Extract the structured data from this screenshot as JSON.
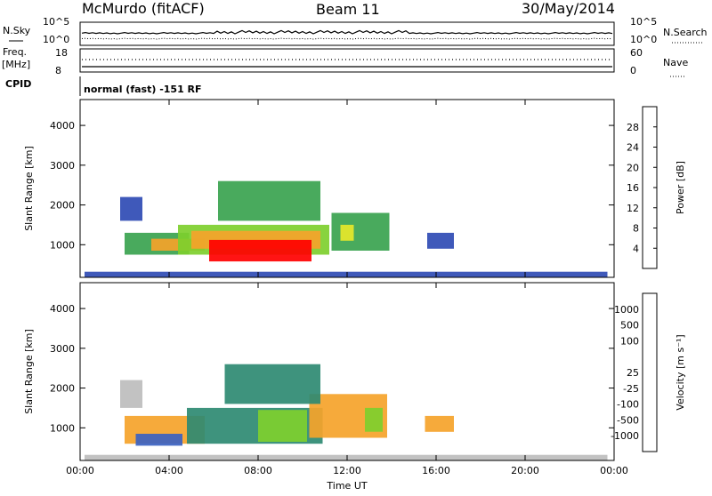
{
  "header": {
    "station": "McMurdo (fitACF)",
    "beam": "Beam 11",
    "date": "30/May/2014"
  },
  "status_panel": {
    "left_labels": {
      "nsky": "N.Sky",
      "freq": "Freq.",
      "freq_unit": "[MHz]",
      "cpid": "CPID"
    },
    "right_labels": {
      "nsearch": "N.Search",
      "nave": "Nave"
    },
    "left_ticks": {
      "sky_top": "10^5",
      "sky_bottom": "10^0",
      "freq_top": "18",
      "freq_bottom": "8"
    },
    "right_ticks": {
      "search_top": "10^5",
      "search_bottom": "10^0",
      "nave_top": "60",
      "nave_bottom": "0"
    },
    "cpid_text": "normal (fast) -151 RF"
  },
  "chart_data": [
    {
      "type": "heatmap",
      "title": "",
      "xlabel": "",
      "ylabel": "Slant Range [km]",
      "x_tick_labels": [
        "00:00",
        "04:00",
        "08:00",
        "12:00",
        "16:00",
        "20:00",
        "00:00"
      ],
      "xlim_hours": [
        0,
        24
      ],
      "y_ticks": [
        1000,
        2000,
        3000,
        4000
      ],
      "ylim": [
        180,
        4650
      ],
      "colorbar": {
        "label": "Power [dB]",
        "ticks": [
          4,
          8,
          12,
          16,
          20,
          24,
          28
        ],
        "range": [
          0,
          32
        ],
        "colors": [
          "#1a1adc",
          "#2f4bb4",
          "#2e8a72",
          "#3aa34f",
          "#7ecf2e",
          "#e8e82a",
          "#f5a32a",
          "#f26a1c",
          "#e32b15",
          "#ff0000"
        ]
      },
      "regions": [
        {
          "t0": 2.0,
          "t1": 4.9,
          "r0": 750,
          "r1": 1300,
          "value": 11
        },
        {
          "t0": 3.2,
          "t1": 5.6,
          "r0": 850,
          "r1": 1150,
          "value": 20
        },
        {
          "t0": 4.4,
          "t1": 11.2,
          "r0": 750,
          "r1": 1500,
          "value": 13
        },
        {
          "t0": 5.0,
          "t1": 10.8,
          "r0": 900,
          "r1": 1350,
          "value": 20
        },
        {
          "t0": 5.8,
          "t1": 10.4,
          "r0": 580,
          "r1": 1120,
          "value": 30
        },
        {
          "t0": 11.3,
          "t1": 13.9,
          "r0": 850,
          "r1": 1800,
          "value": 10
        },
        {
          "t0": 11.7,
          "t1": 12.3,
          "r0": 1100,
          "r1": 1500,
          "value": 18
        },
        {
          "t0": 1.8,
          "t1": 2.8,
          "r0": 1600,
          "r1": 2200,
          "value": 5
        },
        {
          "t0": 6.2,
          "t1": 10.8,
          "r0": 1600,
          "r1": 2600,
          "value": 10
        },
        {
          "t0": 15.6,
          "t1": 16.8,
          "r0": 900,
          "r1": 1300,
          "value": 5
        },
        {
          "t0": 0.2,
          "t1": 23.7,
          "r0": 190,
          "r1": 320,
          "value": 6
        }
      ]
    },
    {
      "type": "heatmap",
      "title": "",
      "xlabel": "Time UT",
      "ylabel": "Slant Range [km]",
      "x_tick_labels": [
        "00:00",
        "04:00",
        "08:00",
        "12:00",
        "16:00",
        "20:00",
        "00:00"
      ],
      "xlim_hours": [
        0,
        24
      ],
      "y_ticks": [
        1000,
        2000,
        3000,
        4000
      ],
      "ylim": [
        180,
        4650
      ],
      "colorbar": {
        "label": "Velocity [m s⁻¹]",
        "tick_labels": [
          "1000",
          "500",
          "100",
          "25",
          "-25",
          "-100",
          "-500",
          "-1000"
        ],
        "colors": [
          "#2e3fb0",
          "#3b62c2",
          "#2e8a72",
          "#3c9e5a",
          "#7ecf2e",
          "#bdbdbd",
          "#f5a32a",
          "#f08a1e",
          "#f26a1c",
          "#e32b15"
        ]
      },
      "regions": [
        {
          "t0": 2.0,
          "t1": 5.6,
          "r0": 600,
          "r1": 1300,
          "value": "-100"
        },
        {
          "t0": 2.5,
          "t1": 4.6,
          "r0": 550,
          "r1": 850,
          "value": "500"
        },
        {
          "t0": 4.8,
          "t1": 10.9,
          "r0": 600,
          "r1": 1500,
          "value": "100"
        },
        {
          "t0": 8.0,
          "t1": 10.2,
          "r0": 650,
          "r1": 1450,
          "value": "25"
        },
        {
          "t0": 10.3,
          "t1": 13.8,
          "r0": 750,
          "r1": 1850,
          "value": "-100"
        },
        {
          "t0": 12.8,
          "t1": 13.6,
          "r0": 900,
          "r1": 1500,
          "value": "25"
        },
        {
          "t0": 1.8,
          "t1": 2.8,
          "r0": 1500,
          "r1": 2200,
          "value": "-25"
        },
        {
          "t0": 6.5,
          "t1": 10.8,
          "r0": 1600,
          "r1": 2600,
          "value": "100"
        },
        {
          "t0": 15.5,
          "t1": 16.8,
          "r0": 900,
          "r1": 1300,
          "value": "-100"
        },
        {
          "t0": 0.2,
          "t1": 23.7,
          "r0": 190,
          "r1": 320,
          "value": "-25"
        }
      ]
    }
  ]
}
